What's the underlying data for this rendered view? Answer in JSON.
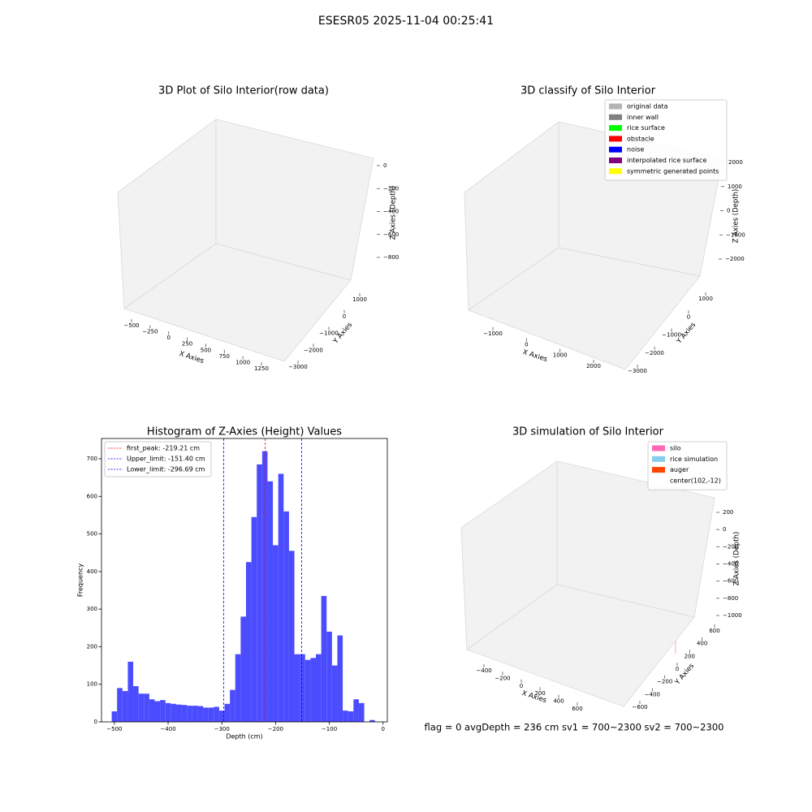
{
  "title": "ESESR05 2025-11-04 00:25:41",
  "footer": "flag = 0    avgDepth = 236 cm  sv1 = 700~2300  sv2 = 700~2300",
  "chart_data": [
    {
      "type": "scatter3d",
      "title": "3D Plot of Silo Interior(row data)",
      "xlabel": "X Axies",
      "ylabel": "Y Axies",
      "zlabel": "Z Axies (Depth)",
      "xticks": [
        {
          "value": -500,
          "label": "−500"
        },
        {
          "value": -250,
          "label": "−250"
        },
        0,
        250,
        500,
        750,
        1000,
        1250
      ],
      "yticks": [
        {
          "value": -3000,
          "label": "−3000"
        },
        {
          "value": -2000,
          "label": "−2000"
        },
        {
          "value": -1000,
          "label": "−1000"
        },
        0,
        1000
      ],
      "zticks": [
        {
          "value": -800,
          "label": "−800"
        },
        {
          "value": -600,
          "label": "−600"
        },
        {
          "value": -400,
          "label": "−400"
        },
        {
          "value": -200,
          "label": "−200"
        },
        0
      ]
    },
    {
      "type": "scatter3d",
      "title": "3D classify of Silo Interior",
      "xlabel": "X Axies",
      "ylabel": "Y Axies",
      "zlabel": "Z Axies (Depth)",
      "xticks": [
        {
          "value": -1000,
          "label": "−1000"
        },
        0,
        1000,
        2000
      ],
      "yticks": [
        {
          "value": -3000,
          "label": "−3000"
        },
        {
          "value": -2000,
          "label": "−2000"
        },
        {
          "value": -1000,
          "label": "−1000"
        },
        0,
        1000
      ],
      "zticks": [
        {
          "value": -2000,
          "label": "−2000"
        },
        {
          "value": -1000,
          "label": "−1000"
        },
        0,
        1000,
        2000
      ],
      "legend": [
        {
          "name": "original data",
          "color": "#b3b3b3"
        },
        {
          "name": "inner wall",
          "color": "#808080"
        },
        {
          "name": "rice surface",
          "color": "#00ff00"
        },
        {
          "name": "obstacle",
          "color": "#ff0000"
        },
        {
          "name": "noise",
          "color": "#0000ff"
        },
        {
          "name": "interpolated rice surface",
          "color": "#800080"
        },
        {
          "name": "symmetric generated points",
          "color": "#ffff00"
        }
      ]
    },
    {
      "type": "histogram",
      "title": "Histogram of Z-Axies (Height) Values",
      "xlabel": "Depth (cm)",
      "ylabel": "Frequency",
      "color": "#4c4cff",
      "bins": [
        -505,
        -495,
        -485,
        -475,
        -465,
        -455,
        -445,
        -435,
        -425,
        -415,
        -405,
        -395,
        -385,
        -375,
        -365,
        -355,
        -345,
        -335,
        -325,
        -315,
        -305,
        -295,
        -285,
        -275,
        -265,
        -255,
        -245,
        -235,
        -225,
        -215,
        -205,
        -195,
        -185,
        -175,
        -165,
        -155,
        -145,
        -135,
        -125,
        -115,
        -105,
        -95,
        -85,
        -75,
        -65,
        -55,
        -45,
        -35,
        -25,
        -15,
        -5
      ],
      "values": [
        28,
        90,
        82,
        160,
        95,
        75,
        75,
        60,
        55,
        58,
        50,
        48,
        46,
        45,
        43,
        43,
        42,
        38,
        38,
        40,
        30,
        48,
        85,
        180,
        280,
        425,
        545,
        685,
        720,
        640,
        470,
        660,
        560,
        455,
        180,
        180,
        165,
        170,
        180,
        335,
        240,
        150,
        230,
        30,
        28,
        60,
        50,
        0,
        5,
        0
      ],
      "vlines": [
        {
          "name": "first_peak: -219.21 cm",
          "value": -219.21,
          "color": "#ff0000"
        },
        {
          "name": "Upper_limit: -151.40 cm",
          "value": -151.4,
          "color": "#0000ff"
        },
        {
          "name": "Lower_limit: -296.69 cm",
          "value": -296.69,
          "color": "#0000ff"
        }
      ],
      "xlim": [
        -524,
        8
      ],
      "ylim": [
        0,
        754
      ],
      "xticks": [
        {
          "value": -500,
          "label": "−500"
        },
        {
          "value": -400,
          "label": "−400"
        },
        {
          "value": -300,
          "label": "−300"
        },
        {
          "value": -200,
          "label": "−200"
        },
        {
          "value": -100,
          "label": "−100"
        },
        0
      ],
      "yticks": [
        0,
        100,
        200,
        300,
        400,
        500,
        600,
        700
      ]
    },
    {
      "type": "scatter3d",
      "title": "3D simulation of Silo Interior",
      "xlabel": "X Axies",
      "ylabel": "Y Axies",
      "zlabel": "Z Axies (Depth)",
      "xticks": [
        {
          "value": -400,
          "label": "−400"
        },
        {
          "value": -200,
          "label": "−200"
        },
        0,
        200,
        400,
        600
      ],
      "yticks": [
        {
          "value": -600,
          "label": "−600"
        },
        {
          "value": -400,
          "label": "−400"
        },
        {
          "value": -200,
          "label": "−200"
        },
        0,
        200,
        400,
        600
      ],
      "zticks": [
        {
          "value": -1000,
          "label": "−1000"
        },
        {
          "value": -800,
          "label": "−800"
        },
        {
          "value": -600,
          "label": "−600"
        },
        {
          "value": -400,
          "label": "−400"
        },
        {
          "value": -200,
          "label": "−200"
        },
        0,
        200
      ],
      "legend": [
        {
          "name": "silo",
          "color": "#ff69b4"
        },
        {
          "name": "rice simulation",
          "color": "#87ceeb"
        },
        {
          "name": "auger",
          "color": "#ff4500"
        },
        {
          "name": "center(102,-12)"
        }
      ]
    }
  ]
}
